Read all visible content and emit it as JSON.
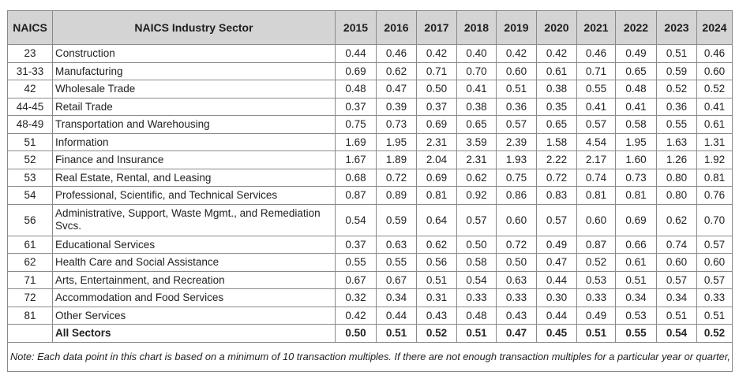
{
  "headers": {
    "naics": "NAICS",
    "sector": "NAICS Industry Sector",
    "years": [
      "2015",
      "2016",
      "2017",
      "2018",
      "2019",
      "2020",
      "2021",
      "2022",
      "2023",
      "2024"
    ]
  },
  "rows": [
    {
      "code": "23",
      "sector": "Construction",
      "values": [
        "0.44",
        "0.46",
        "0.42",
        "0.40",
        "0.42",
        "0.42",
        "0.46",
        "0.49",
        "0.51",
        "0.46"
      ]
    },
    {
      "code": "31-33",
      "sector": "Manufacturing",
      "values": [
        "0.69",
        "0.62",
        "0.71",
        "0.70",
        "0.60",
        "0.61",
        "0.71",
        "0.65",
        "0.59",
        "0.60"
      ]
    },
    {
      "code": "42",
      "sector": "Wholesale Trade",
      "values": [
        "0.48",
        "0.47",
        "0.50",
        "0.41",
        "0.51",
        "0.38",
        "0.55",
        "0.48",
        "0.52",
        "0.52"
      ]
    },
    {
      "code": "44-45",
      "sector": "Retail Trade",
      "values": [
        "0.37",
        "0.39",
        "0.37",
        "0.38",
        "0.36",
        "0.35",
        "0.41",
        "0.41",
        "0.36",
        "0.41"
      ]
    },
    {
      "code": "48-49",
      "sector": "Transportation and Warehousing",
      "values": [
        "0.75",
        "0.73",
        "0.69",
        "0.65",
        "0.57",
        "0.65",
        "0.57",
        "0.58",
        "0.55",
        "0.61"
      ]
    },
    {
      "code": "51",
      "sector": "Information",
      "values": [
        "1.69",
        "1.95",
        "2.31",
        "3.59",
        "2.39",
        "1.58",
        "4.54",
        "1.95",
        "1.63",
        "1.31"
      ]
    },
    {
      "code": "52",
      "sector": "Finance and Insurance",
      "values": [
        "1.67",
        "1.89",
        "2.04",
        "2.31",
        "1.93",
        "2.22",
        "2.17",
        "1.60",
        "1.26",
        "1.92"
      ]
    },
    {
      "code": "53",
      "sector": "Real Estate, Rental, and Leasing",
      "values": [
        "0.68",
        "0.72",
        "0.69",
        "0.62",
        "0.75",
        "0.72",
        "0.74",
        "0.73",
        "0.80",
        "0.81"
      ]
    },
    {
      "code": "54",
      "sector": "Professional, Scientific, and Technical Services",
      "values": [
        "0.87",
        "0.89",
        "0.81",
        "0.92",
        "0.86",
        "0.83",
        "0.81",
        "0.81",
        "0.80",
        "0.76"
      ]
    },
    {
      "code": "56",
      "sector": "Administrative, Support, Waste Mgmt., and Remediation Svcs.",
      "values": [
        "0.54",
        "0.59",
        "0.64",
        "0.57",
        "0.60",
        "0.57",
        "0.60",
        "0.69",
        "0.62",
        "0.70"
      ]
    },
    {
      "code": "61",
      "sector": "Educational Services",
      "values": [
        "0.37",
        "0.63",
        "0.62",
        "0.50",
        "0.72",
        "0.49",
        "0.87",
        "0.66",
        "0.74",
        "0.57"
      ]
    },
    {
      "code": "62",
      "sector": "Health Care and Social Assistance",
      "values": [
        "0.55",
        "0.55",
        "0.56",
        "0.58",
        "0.50",
        "0.47",
        "0.52",
        "0.61",
        "0.60",
        "0.60"
      ]
    },
    {
      "code": "71",
      "sector": "Arts, Entertainment, and Recreation",
      "values": [
        "0.67",
        "0.67",
        "0.51",
        "0.54",
        "0.63",
        "0.44",
        "0.53",
        "0.51",
        "0.57",
        "0.57"
      ]
    },
    {
      "code": "72",
      "sector": "Accommodation and Food Services",
      "values": [
        "0.32",
        "0.34",
        "0.31",
        "0.33",
        "0.33",
        "0.30",
        "0.33",
        "0.34",
        "0.34",
        "0.33"
      ]
    },
    {
      "code": "81",
      "sector": "Other Services",
      "values": [
        "0.42",
        "0.44",
        "0.43",
        "0.48",
        "0.43",
        "0.44",
        "0.49",
        "0.53",
        "0.51",
        "0.51"
      ]
    }
  ],
  "total": {
    "code": "",
    "sector": "All Sectors",
    "values": [
      "0.50",
      "0.51",
      "0.52",
      "0.51",
      "0.47",
      "0.45",
      "0.51",
      "0.55",
      "0.54",
      "0.52"
    ]
  },
  "note": "Note: Each data point in this chart is based on a minimum of 10 transaction multiples. If there are not enough transaction multiples for a particular year or quarter, the data are not included.",
  "colors": {
    "header_bg": "#d4d4d4",
    "border": "#8a8a8a",
    "text": "#222222"
  }
}
